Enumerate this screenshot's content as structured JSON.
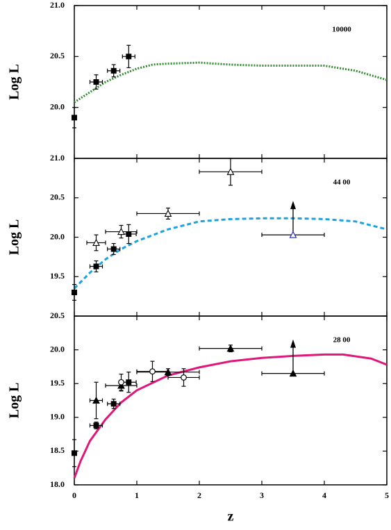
{
  "chart_data": [
    {
      "type": "scatter",
      "ylabel": "Log L",
      "annotation": "10000",
      "xlim": [
        0,
        5
      ],
      "xticks": [
        0,
        1,
        2,
        3,
        4,
        5
      ],
      "ylim": [
        19.5,
        21.0
      ],
      "yticks": [
        {
          "value": 20.0,
          "label": "20.0"
        },
        20.5,
        {
          "value": 21.0,
          "label": "21.0"
        }
      ],
      "series": [
        {
          "style": "line",
          "dash": "2,2",
          "color": "#2e8b2e",
          "width": 3,
          "x": [
            0,
            0.25,
            0.5,
            0.75,
            1,
            1.25,
            1.5,
            2,
            2.5,
            3,
            3.5,
            4,
            4.5,
            5
          ],
          "values": [
            20.05,
            20.15,
            20.25,
            20.32,
            20.38,
            20.42,
            20.43,
            20.44,
            20.42,
            20.41,
            20.41,
            20.41,
            20.36,
            20.27
          ]
        },
        {
          "style": "marker",
          "marker": "square",
          "color": "#000000",
          "x": [
            0,
            0.35,
            0.63,
            0.87
          ],
          "values": [
            19.9,
            20.25,
            20.36,
            20.5
          ],
          "xerr": [
            null,
            0.1,
            0.1,
            0.1
          ],
          "yerr": [
            0.1,
            0.07,
            0.06,
            0.11
          ]
        }
      ]
    },
    {
      "type": "scatter",
      "ylabel": "Log L",
      "annotation": "44 00",
      "xlim": [
        0,
        5
      ],
      "xticks": [
        0,
        1,
        2,
        3,
        4,
        5
      ],
      "ylim": [
        19.0,
        21.0
      ],
      "yticks": [
        19.5,
        {
          "value": 20.0,
          "label": "20.0"
        },
        20.5,
        {
          "value": 21.0,
          "label": "21.0"
        }
      ],
      "series": [
        {
          "style": "line",
          "dash": "6,4",
          "color": "#1aa3e0",
          "width": 3,
          "x": [
            0,
            0.25,
            0.5,
            0.75,
            1,
            1.5,
            2,
            2.5,
            3,
            3.5,
            4,
            4.5,
            5
          ],
          "values": [
            19.35,
            19.55,
            19.72,
            19.85,
            19.95,
            20.1,
            20.2,
            20.23,
            20.24,
            20.24,
            20.23,
            20.2,
            20.1
          ]
        },
        {
          "style": "marker",
          "marker": "square",
          "color": "#000000",
          "x": [
            0,
            0.35,
            0.63,
            0.87
          ],
          "values": [
            19.3,
            19.63,
            19.85,
            20.04
          ],
          "xerr": [
            null,
            0.1,
            0.1,
            0.12
          ],
          "yerr": [
            0.1,
            0.07,
            0.07,
            0.12
          ]
        },
        {
          "style": "marker",
          "marker": "triangle-open",
          "color": "#000000",
          "x": [
            0.35,
            0.75,
            1.5,
            2.5
          ],
          "values": [
            19.93,
            20.07,
            20.3,
            20.83
          ],
          "xerr": [
            0.15,
            0.25,
            0.5,
            0.5
          ],
          "yerr": [
            0.1,
            0.08,
            0.07,
            0.17
          ]
        },
        {
          "style": "marker",
          "marker": "triangle-open",
          "color": "#1f1fd0",
          "lower_limit": true,
          "x": [
            3.5
          ],
          "values": [
            20.03
          ],
          "xerr": [
            0.5
          ],
          "yerr": [
            null
          ]
        }
      ]
    },
    {
      "type": "scatter",
      "ylabel": "Log L",
      "annotation": "28 00",
      "xlabel": "z",
      "xlim": [
        0,
        5
      ],
      "xticks": [
        0,
        1,
        2,
        3,
        4,
        5
      ],
      "ylim": [
        18.0,
        20.5
      ],
      "yticks": [
        {
          "value": 18.0,
          "label": "18.0"
        },
        18.5,
        {
          "value": 19.0,
          "label": "19.0"
        },
        19.5,
        {
          "value": 20.0,
          "label": "20.0"
        },
        20.5
      ],
      "series": [
        {
          "style": "line",
          "dash": "",
          "color": "#e0177a",
          "width": 3,
          "x": [
            0,
            0.1,
            0.25,
            0.5,
            0.75,
            1,
            1.5,
            2,
            2.5,
            3,
            3.5,
            4,
            4.3,
            4.75,
            5
          ],
          "values": [
            18.1,
            18.35,
            18.65,
            18.97,
            19.22,
            19.4,
            19.62,
            19.74,
            19.83,
            19.88,
            19.91,
            19.93,
            19.93,
            19.87,
            19.78
          ]
        },
        {
          "style": "marker",
          "marker": "square",
          "color": "#000000",
          "x": [
            0,
            0.35,
            0.63,
            0.87
          ],
          "values": [
            18.47,
            18.88,
            19.2,
            19.52
          ],
          "xerr": [
            null,
            0.1,
            0.1,
            0.12
          ],
          "yerr": [
            0.2,
            0.05,
            0.07,
            0.15
          ]
        },
        {
          "style": "marker",
          "marker": "triangle",
          "color": "#000000",
          "x": [
            0.35,
            0.75,
            1.5,
            2.5
          ],
          "values": [
            19.25,
            19.47,
            19.67,
            20.02
          ],
          "xerr": [
            0.1,
            0.25,
            0.5,
            0.5
          ],
          "yerr": [
            0.27,
            0.08,
            0.05,
            0.05
          ]
        },
        {
          "style": "marker",
          "marker": "circle-open",
          "color": "#000000",
          "x": [
            0.75,
            1.25,
            1.75
          ],
          "values": [
            19.52,
            19.68,
            19.59
          ],
          "xerr": [
            null,
            0.25,
            0.25
          ],
          "yerr": [
            0.12,
            0.15,
            0.13
          ]
        },
        {
          "style": "marker",
          "marker": "triangle",
          "color": "#000000",
          "lower_limit": true,
          "x": [
            3.5
          ],
          "values": [
            19.65
          ],
          "xerr": [
            0.5
          ],
          "yerr": [
            null
          ]
        }
      ]
    }
  ]
}
